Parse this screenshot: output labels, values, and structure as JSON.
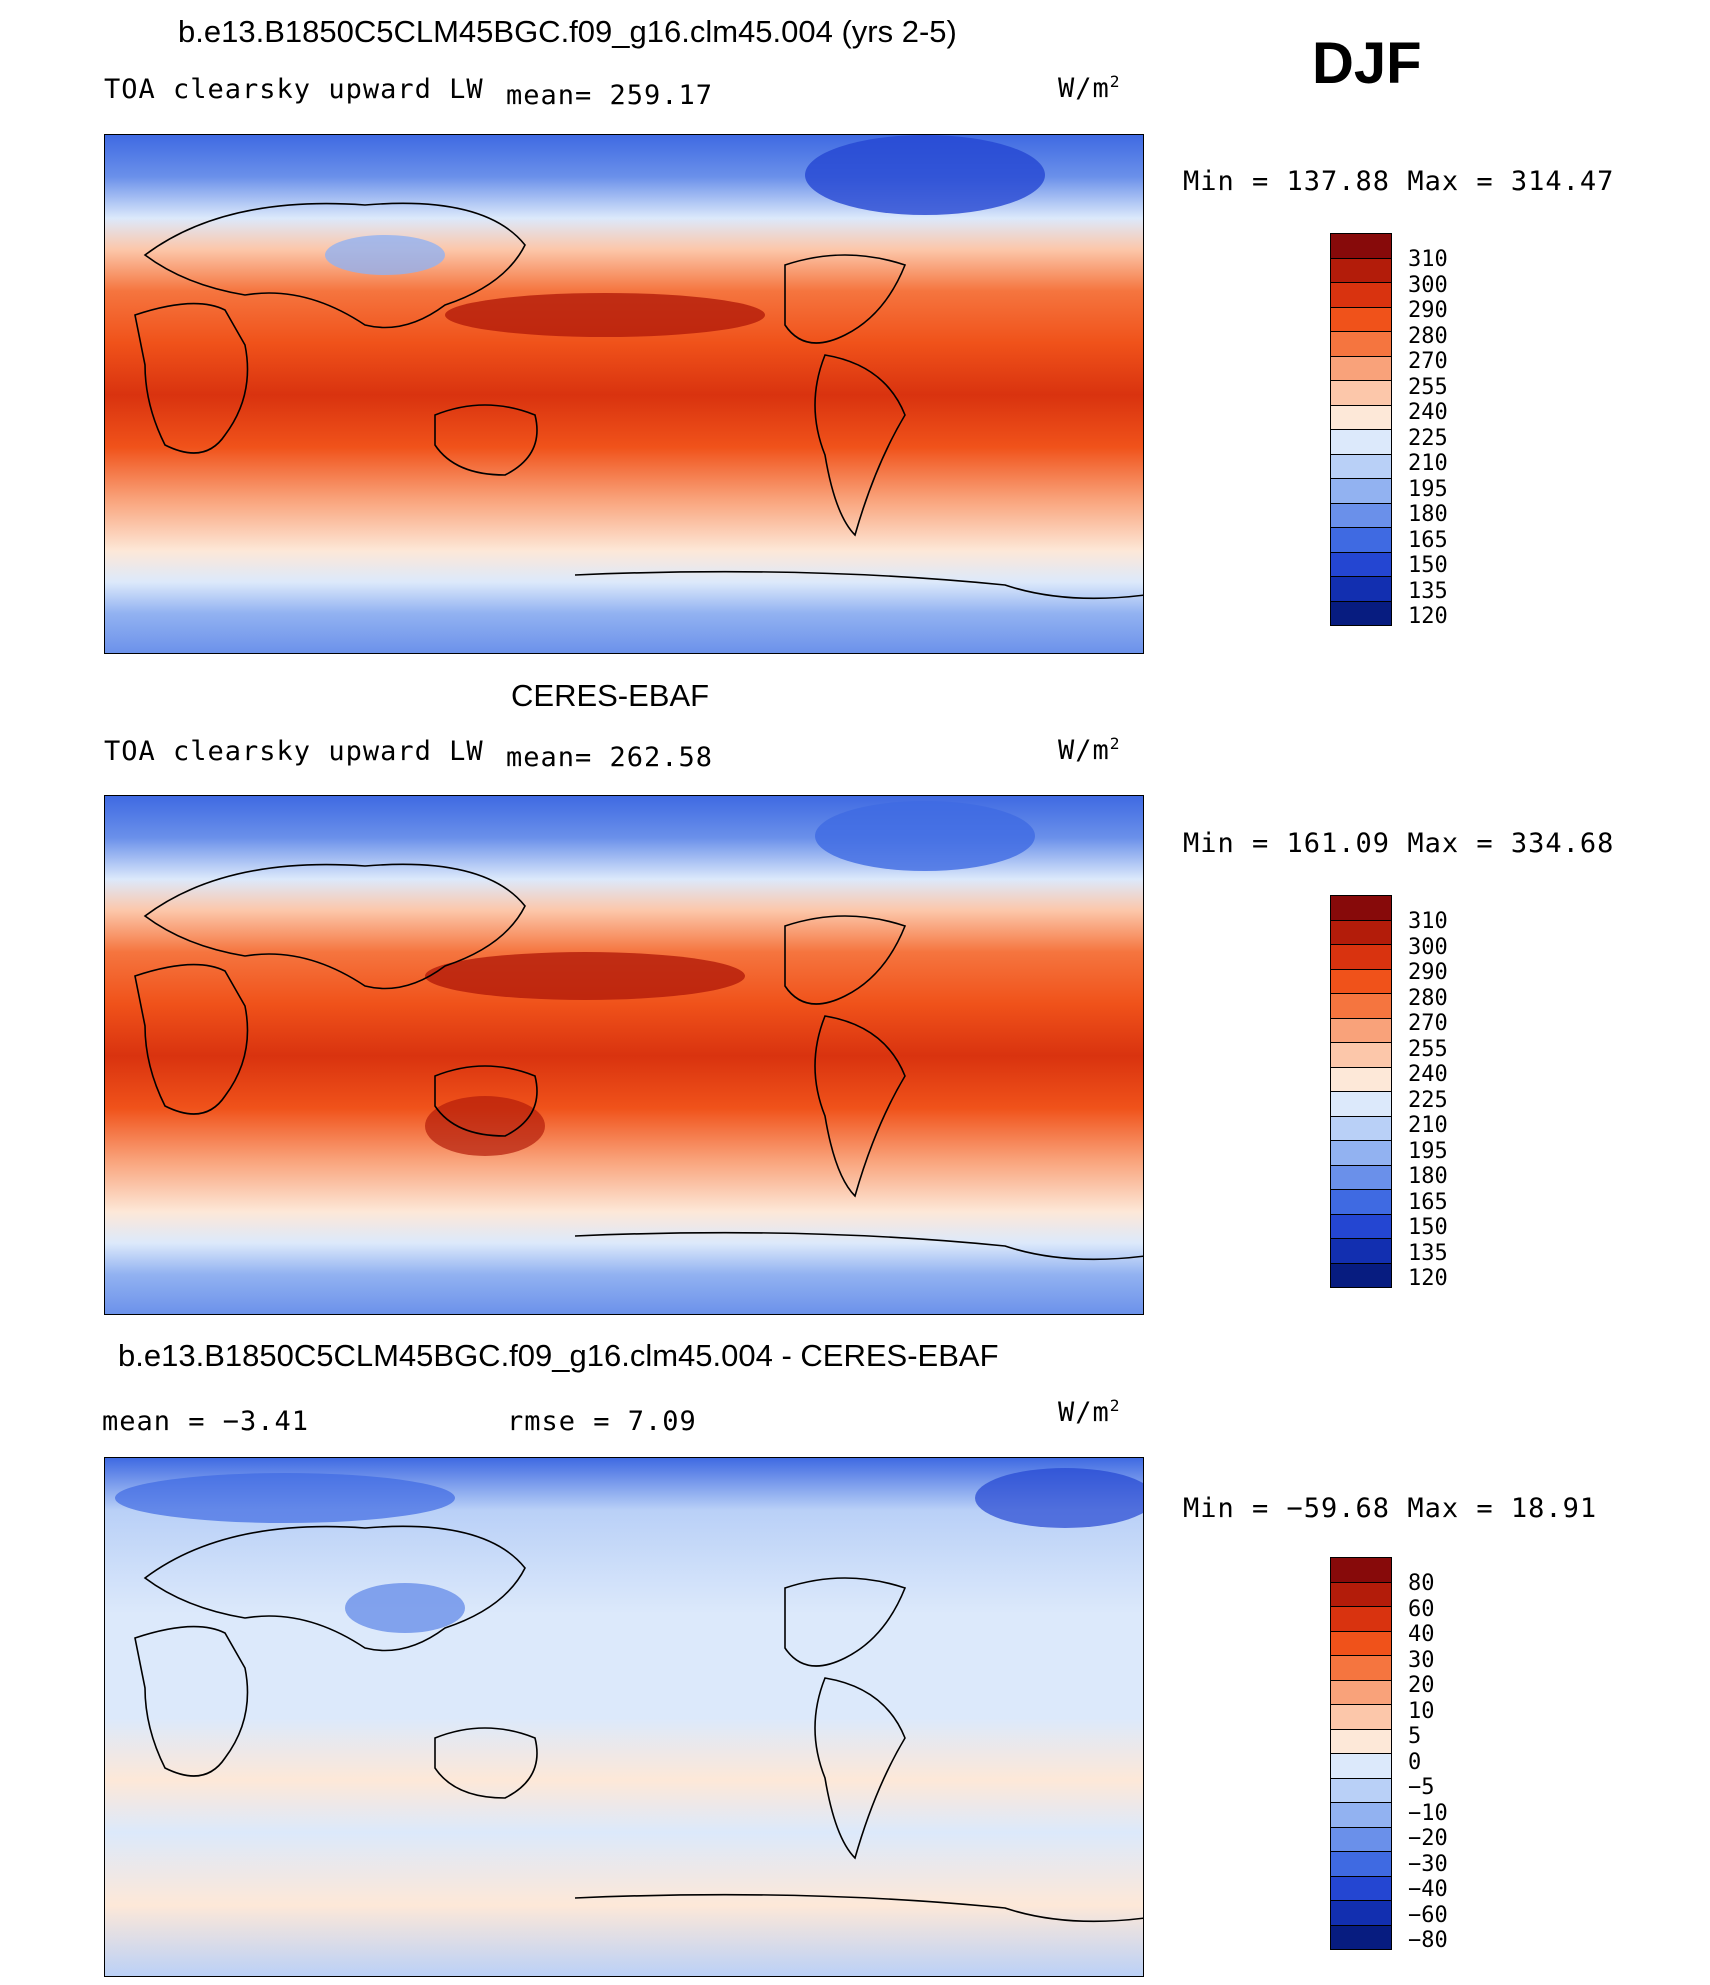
{
  "season": "DJF",
  "panels": [
    {
      "title": "b.e13.B1850C5CLM45BGC.f09_g16.clm45.004 (yrs 2-5)",
      "variable": "TOA clearsky upward LW",
      "stat": "mean= 259.17",
      "units": "W/m",
      "units_sup": "2",
      "minmax": "Min  =  137.88  Max  =  314.47",
      "colorbar_labels": [
        "310",
        "300",
        "290",
        "280",
        "270",
        "255",
        "240",
        "225",
        "210",
        "195",
        "180",
        "165",
        "150",
        "135",
        "120"
      ],
      "colors": [
        "#870a0a",
        "#b31c0a",
        "#d9330f",
        "#f0521a",
        "#f5753f",
        "#f9a27a",
        "#fcc7aa",
        "#fde8d8",
        "#dce9fb",
        "#b9d0f7",
        "#92b2f1",
        "#6a90ea",
        "#3f6ae2",
        "#2446d2",
        "#122fb0",
        "#071c80"
      ]
    },
    {
      "title": "CERES-EBAF",
      "variable": "TOA clearsky upward LW",
      "stat": "mean= 262.58",
      "units": "W/m",
      "units_sup": "2",
      "minmax": "Min  =  161.09  Max  =  334.68",
      "colorbar_labels": [
        "310",
        "300",
        "290",
        "280",
        "270",
        "255",
        "240",
        "225",
        "210",
        "195",
        "180",
        "165",
        "150",
        "135",
        "120"
      ],
      "colors": [
        "#870a0a",
        "#b31c0a",
        "#d9330f",
        "#f0521a",
        "#f5753f",
        "#f9a27a",
        "#fcc7aa",
        "#fde8d8",
        "#dce9fb",
        "#b9d0f7",
        "#92b2f1",
        "#6a90ea",
        "#3f6ae2",
        "#2446d2",
        "#122fb0",
        "#071c80"
      ]
    },
    {
      "title": "b.e13.B1850C5CLM45BGC.f09_g16.clm45.004 - CERES-EBAF",
      "stat_mean": "mean =   −3.41",
      "stat_rmse": "rmse =    7.09",
      "units": "W/m",
      "units_sup": "2",
      "minmax": "Min  =  −59.68  Max  =   18.91",
      "colorbar_labels": [
        "80",
        "60",
        "40",
        "30",
        "20",
        "10",
        "5",
        "0",
        "−5",
        "−10",
        "−20",
        "−30",
        "−40",
        "−60",
        "−80"
      ],
      "colors": [
        "#870a0a",
        "#b31c0a",
        "#d9330f",
        "#f0521a",
        "#f5753f",
        "#f9a27a",
        "#fcc7aa",
        "#fde8d8",
        "#dce9fb",
        "#b9d0f7",
        "#92b2f1",
        "#6a90ea",
        "#3f6ae2",
        "#2446d2",
        "#122fb0",
        "#071c80"
      ]
    }
  ]
}
